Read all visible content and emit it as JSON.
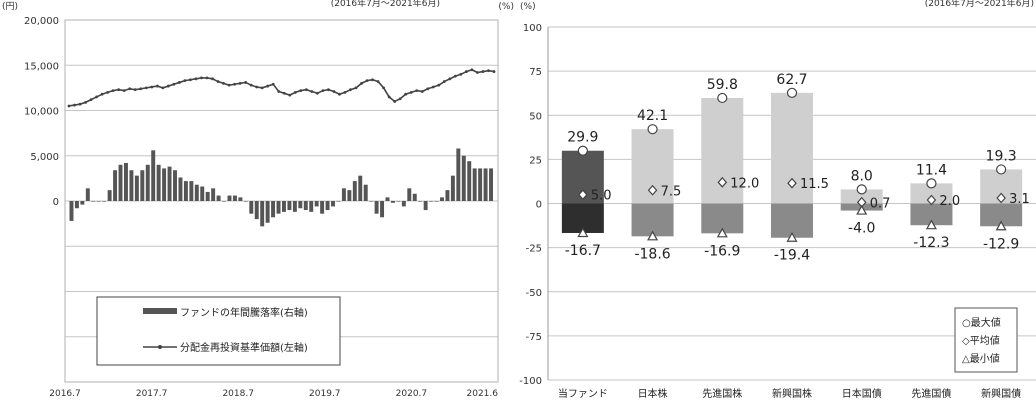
{
  "chart_data": [
    {
      "type": "bar+line",
      "unit_left": "(円)",
      "unit_right": "(%)",
      "period": "(2016年7月～2021年6月)",
      "y_left_ticks": [
        "20,000",
        "15,000",
        "10,000",
        "5,000",
        "0"
      ],
      "y_left_lim": [
        -20000,
        20000
      ],
      "x_ticks": [
        "2016.7",
        "2017.7",
        "2018.7",
        "2019.7",
        "2020.7",
        "2021.6"
      ],
      "legend": {
        "bar_label": "ファンドの年間騰落率(右軸)",
        "line_label": "分配金再投資基準価額(左軸)"
      },
      "colors": {
        "bar": "#555555",
        "line": "#444444"
      },
      "series": [
        {
          "name": "分配金再投資基準価額(左軸)",
          "axis": "left",
          "values": [
            10500,
            10600,
            10700,
            10900,
            11200,
            11500,
            11800,
            12000,
            12200,
            12300,
            12200,
            12400,
            12300,
            12400,
            12500,
            12600,
            12700,
            12500,
            12700,
            12900,
            13100,
            13300,
            13400,
            13500,
            13600,
            13600,
            13500,
            13200,
            13000,
            12800,
            12900,
            13000,
            13100,
            12800,
            12600,
            12500,
            12700,
            12900,
            12100,
            11900,
            11700,
            12000,
            12200,
            12300,
            12100,
            11900,
            12200,
            12300,
            12100,
            11800,
            12000,
            12300,
            12500,
            13000,
            13300,
            13400,
            13200,
            12500,
            11500,
            11000,
            11300,
            11800,
            12000,
            12200,
            12100,
            12400,
            12600,
            12800,
            13200,
            13500,
            13800,
            14000,
            14300,
            14500,
            14200,
            14300,
            14400,
            14300
          ]
        },
        {
          "name": "ファンドの年間騰落率(右軸)",
          "axis": "right",
          "values": [
            -11,
            -4,
            -2,
            7,
            0,
            0,
            0,
            6,
            17,
            20,
            21,
            17,
            14,
            17,
            20,
            28,
            20,
            18,
            19,
            17,
            13,
            11,
            11,
            9,
            8,
            5,
            7,
            3,
            0,
            3,
            3,
            2,
            0,
            -7,
            -10,
            -14,
            -12,
            -9,
            -7,
            -6,
            -5,
            -6,
            -4,
            -5,
            -6,
            -3,
            -7,
            -5,
            -3,
            0,
            7,
            6,
            11,
            14,
            9,
            0,
            -7,
            -9,
            2,
            -1,
            0,
            -3,
            7,
            4,
            0,
            -5,
            0,
            0,
            2,
            6,
            14,
            29,
            25,
            22,
            18,
            18,
            18,
            18
          ]
        }
      ]
    },
    {
      "type": "bar",
      "unit": "(%)",
      "period": "(2016年7月～2021年6月)",
      "y_ticks": [
        "100",
        "75",
        "50",
        "25",
        "0",
        "-25",
        "-50",
        "-75",
        "-100"
      ],
      "ylim": [
        -100,
        100
      ],
      "categories": [
        "当ファンド",
        "日本株",
        "先進国株",
        "新興国株",
        "日本国債",
        "先進国債",
        "新興国債"
      ],
      "max": [
        29.9,
        42.1,
        59.8,
        62.7,
        8.0,
        11.4,
        19.3
      ],
      "avg": [
        5.0,
        7.5,
        12.0,
        11.5,
        0.7,
        2.0,
        3.1
      ],
      "min": [
        -16.7,
        -18.6,
        -16.9,
        -19.4,
        -4.0,
        -12.3,
        -12.9
      ],
      "max_labels": [
        "29.9",
        "42.1",
        "59.8",
        "62.7",
        "8.0",
        "11.4",
        "19.3"
      ],
      "avg_labels": [
        "5.0",
        "7.5",
        "12.0",
        "11.5",
        "0.7",
        "2.0",
        "3.1"
      ],
      "min_labels": [
        "-16.7",
        "-18.6",
        "-16.9",
        "-19.4",
        "-4.0",
        "-12.3",
        "-12.9"
      ],
      "legend": [
        "○最大値",
        "◇平均値",
        "△最小値"
      ],
      "colors": {
        "fund_pos": "#555555",
        "fund_neg": "#2e2e2e",
        "other_pos": "#cfcfcf",
        "other_neg": "#8a8a8a"
      }
    }
  ]
}
